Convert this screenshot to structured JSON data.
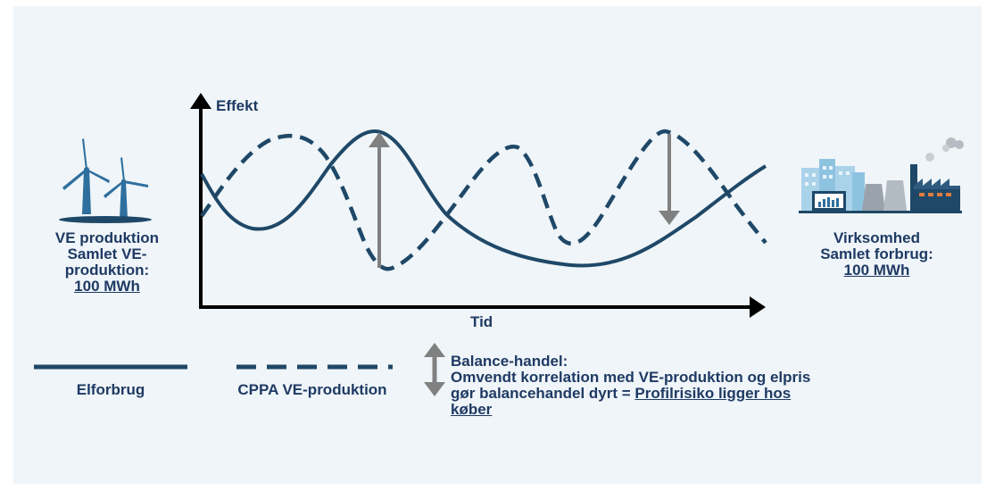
{
  "colors": {
    "background": "#eff5f8",
    "line": "#1f4868",
    "text": "#1f3a64",
    "arrow": "#808080",
    "axis": "#000000"
  },
  "left_block": {
    "icon": "wind-turbine-icon",
    "title": "VE produktion",
    "subtitle_1": "Samlet VE-",
    "subtitle_2": "produktion:",
    "amount": "100 MWh"
  },
  "right_block": {
    "icon": "factory-icon",
    "title": "Virksomhed",
    "subtitle": "Samlet forbrug:",
    "amount": "100 MWh"
  },
  "axes": {
    "y_label": "Effekt",
    "x_label": "Tid"
  },
  "legend": {
    "solid_label": "Elforbrug",
    "dashed_label": "CPPA VE-produktion"
  },
  "note": {
    "icon": "double-arrow-icon",
    "title": "Balance-handel:",
    "line_1": "Omvendt korrelation med VE-produktion og elpris",
    "line_2_prefix": "gør balancehandel dyrt = ",
    "line_2_link": "Profilrisiko ligger hos",
    "line_3_link": "køber"
  }
}
